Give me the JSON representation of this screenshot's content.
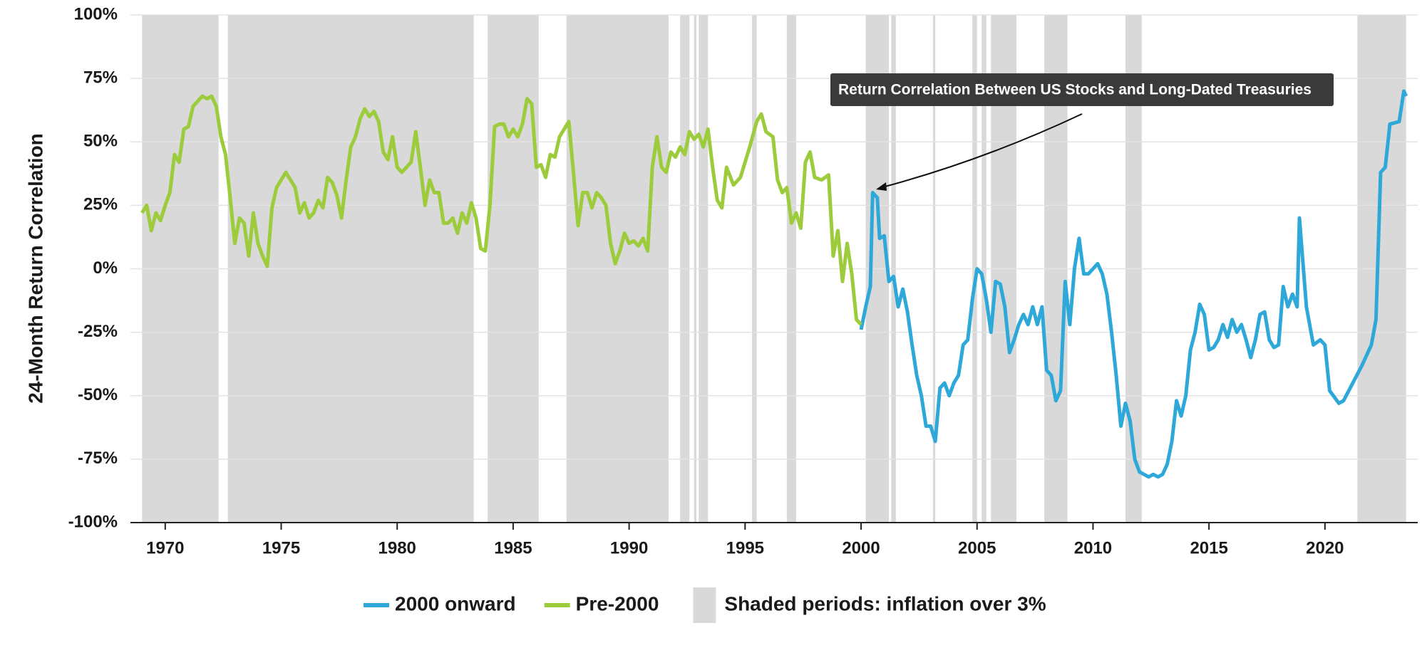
{
  "chart_data": {
    "type": "line",
    "y_label": "24-Month Return Correlation",
    "annotation": "Return Correlation Between US Stocks and Long-Dated Treasuries",
    "shaded_label": "Shaded periods: inflation over 3%",
    "shaded_color": "#d9d9d9",
    "shaded_periods": [
      [
        1969.0,
        1972.3
      ],
      [
        1972.7,
        1983.3
      ],
      [
        1983.9,
        1986.1
      ],
      [
        1987.3,
        1991.7
      ],
      [
        1992.2,
        1992.6
      ],
      [
        1992.8,
        1992.9
      ],
      [
        1993.0,
        1993.4
      ],
      [
        1995.3,
        1995.5
      ],
      [
        1996.8,
        1997.2
      ],
      [
        2000.2,
        2001.2
      ],
      [
        2001.3,
        2001.5
      ],
      [
        2003.1,
        2003.2
      ],
      [
        2004.8,
        2005.0
      ],
      [
        2005.2,
        2005.4
      ],
      [
        2005.6,
        2006.7
      ],
      [
        2007.9,
        2008.9
      ],
      [
        2011.4,
        2012.1
      ],
      [
        2021.4,
        2023.5
      ]
    ],
    "xlim": [
      1968.5,
      2024
    ],
    "xticks": [
      1970,
      1975,
      1980,
      1985,
      1990,
      1995,
      2000,
      2005,
      2010,
      2015,
      2020
    ],
    "ylim": [
      -100,
      100
    ],
    "yticks": [
      {
        "value": -100,
        "label": "-100%"
      },
      {
        "value": -75,
        "label": "-75%"
      },
      {
        "value": -50,
        "label": "-50%"
      },
      {
        "value": -25,
        "label": "-25%"
      },
      {
        "value": 0,
        "label": "0%"
      },
      {
        "value": 25,
        "label": "25%"
      },
      {
        "value": 50,
        "label": "50%"
      },
      {
        "value": 75,
        "label": "75%"
      },
      {
        "value": 100,
        "label": "100%"
      }
    ],
    "grid": true,
    "series": [
      {
        "name": "2000 onward",
        "color": "#2ea8d8",
        "x": [
          2000.0,
          2000.2,
          2000.4,
          2000.5,
          2000.7,
          2000.8,
          2001.0,
          2001.2,
          2001.4,
          2001.6,
          2001.8,
          2002.0,
          2002.2,
          2002.4,
          2002.6,
          2002.8,
          2003.0,
          2003.2,
          2003.4,
          2003.6,
          2003.8,
          2004.0,
          2004.2,
          2004.4,
          2004.6,
          2004.8,
          2005.0,
          2005.2,
          2005.4,
          2005.6,
          2005.8,
          2006.0,
          2006.2,
          2006.4,
          2006.6,
          2006.8,
          2007.0,
          2007.2,
          2007.4,
          2007.6,
          2007.8,
          2008.0,
          2008.2,
          2008.4,
          2008.6,
          2008.8,
          2009.0,
          2009.2,
          2009.4,
          2009.6,
          2009.8,
          2010.0,
          2010.2,
          2010.4,
          2010.6,
          2010.8,
          2011.0,
          2011.2,
          2011.4,
          2011.6,
          2011.8,
          2012.0,
          2012.2,
          2012.4,
          2012.6,
          2012.8,
          2013.0,
          2013.2,
          2013.4,
          2013.6,
          2013.8,
          2014.0,
          2014.2,
          2014.4,
          2014.6,
          2014.8,
          2015.0,
          2015.2,
          2015.4,
          2015.6,
          2015.8,
          2016.0,
          2016.2,
          2016.4,
          2016.6,
          2016.8,
          2017.0,
          2017.2,
          2017.4,
          2017.6,
          2017.8,
          2018.0,
          2018.2,
          2018.4,
          2018.6,
          2018.8,
          2018.9,
          2019.2,
          2019.5,
          2019.8,
          2020.0,
          2020.2,
          2020.6,
          2020.8,
          2021.2,
          2021.6,
          2022.0,
          2022.2,
          2022.4,
          2022.6,
          2022.8,
          2023.2,
          2023.4,
          2023.5
        ],
        "values": [
          -24,
          -15,
          -7,
          30,
          28,
          12,
          13,
          -5,
          -3,
          -15,
          -8,
          -17,
          -30,
          -42,
          -50,
          -62,
          -62,
          -68,
          -47,
          -45,
          -50,
          -45,
          -42,
          -30,
          -28,
          -12,
          0,
          -2,
          -12,
          -25,
          -5,
          -6,
          -15,
          -33,
          -28,
          -22,
          -18,
          -22,
          -15,
          -22,
          -15,
          -40,
          -42,
          -52,
          -48,
          -5,
          -22,
          0,
          12,
          -2,
          -2,
          0,
          2,
          -2,
          -10,
          -25,
          -42,
          -62,
          -53,
          -60,
          -75,
          -80,
          -81,
          -82,
          -81,
          -82,
          -81,
          -77,
          -68,
          -52,
          -58,
          -50,
          -32,
          -25,
          -14,
          -18,
          -32,
          -31,
          -28,
          -22,
          -27,
          -20,
          -25,
          -22,
          -28,
          -35,
          -28,
          -18,
          -17,
          -28,
          -31,
          -30,
          -7,
          -15,
          -10,
          -15,
          20,
          -15,
          -30,
          -28,
          -30,
          -48,
          -53,
          -52,
          -45,
          -38,
          -30,
          -20,
          38,
          40,
          57,
          58,
          70,
          68
        ]
      },
      {
        "name": "Pre-2000",
        "color": "#9ccc3c",
        "x": [
          1969.0,
          1969.2,
          1969.4,
          1969.6,
          1969.8,
          1970.0,
          1970.2,
          1970.4,
          1970.6,
          1970.8,
          1971.0,
          1971.2,
          1971.4,
          1971.6,
          1971.8,
          1972.0,
          1972.2,
          1972.4,
          1972.6,
          1972.8,
          1973.0,
          1973.2,
          1973.4,
          1973.6,
          1973.8,
          1974.0,
          1974.2,
          1974.4,
          1974.6,
          1974.8,
          1975.0,
          1975.2,
          1975.4,
          1975.6,
          1975.8,
          1976.0,
          1976.2,
          1976.4,
          1976.6,
          1976.8,
          1977.0,
          1977.2,
          1977.4,
          1977.6,
          1977.8,
          1978.0,
          1978.2,
          1978.4,
          1978.6,
          1978.8,
          1979.0,
          1979.2,
          1979.4,
          1979.6,
          1979.8,
          1980.0,
          1980.2,
          1980.4,
          1980.6,
          1980.8,
          1981.0,
          1981.2,
          1981.4,
          1981.6,
          1981.8,
          1982.0,
          1982.2,
          1982.4,
          1982.6,
          1982.8,
          1983.0,
          1983.2,
          1983.4,
          1983.6,
          1983.8,
          1984.0,
          1984.2,
          1984.4,
          1984.6,
          1984.8,
          1985.0,
          1985.2,
          1985.4,
          1985.6,
          1985.8,
          1986.0,
          1986.2,
          1986.4,
          1986.6,
          1986.8,
          1987.0,
          1987.2,
          1987.4,
          1987.6,
          1987.8,
          1988.0,
          1988.2,
          1988.4,
          1988.6,
          1988.8,
          1989.0,
          1989.2,
          1989.4,
          1989.6,
          1989.8,
          1990.0,
          1990.2,
          1990.4,
          1990.6,
          1990.8,
          1991.0,
          1991.2,
          1991.4,
          1991.6,
          1991.8,
          1992.0,
          1992.2,
          1992.4,
          1992.6,
          1992.8,
          1993.0,
          1993.2,
          1993.4,
          1993.6,
          1993.8,
          1994.0,
          1994.2,
          1994.5,
          1994.8,
          1995.0,
          1995.2,
          1995.5,
          1995.7,
          1995.9,
          1996.2,
          1996.4,
          1996.6,
          1996.8,
          1997.0,
          1997.2,
          1997.4,
          1997.6,
          1997.8,
          1998.0,
          1998.3,
          1998.6,
          1998.8,
          1999.0,
          1999.2,
          1999.4,
          1999.6,
          1999.8,
          2000.0
        ],
        "values": [
          22,
          25,
          15,
          22,
          19,
          25,
          30,
          45,
          42,
          55,
          56,
          64,
          66,
          68,
          67,
          68,
          64,
          52,
          45,
          28,
          10,
          20,
          18,
          5,
          22,
          10,
          5,
          1,
          24,
          32,
          35,
          38,
          35,
          32,
          22,
          26,
          20,
          22,
          27,
          24,
          36,
          34,
          29,
          20,
          35,
          48,
          52,
          59,
          63,
          60,
          62,
          58,
          46,
          43,
          52,
          40,
          38,
          40,
          42,
          54,
          40,
          25,
          35,
          30,
          30,
          18,
          18,
          20,
          14,
          22,
          18,
          26,
          20,
          8,
          7,
          25,
          56,
          57,
          57,
          52,
          55,
          52,
          57,
          67,
          65,
          40,
          41,
          36,
          45,
          44,
          52,
          55,
          58,
          38,
          17,
          30,
          30,
          24,
          30,
          28,
          25,
          10,
          2,
          7,
          14,
          10,
          11,
          9,
          12,
          7,
          40,
          52,
          40,
          38,
          46,
          44,
          48,
          45,
          54,
          51,
          53,
          48,
          55,
          40,
          27,
          24,
          40,
          33,
          36,
          42,
          48,
          58,
          61,
          54,
          52,
          35,
          30,
          32,
          18,
          22,
          16,
          42,
          46,
          36,
          35,
          37,
          5,
          15,
          -5,
          10,
          -2,
          -20,
          -22
        ]
      }
    ]
  }
}
